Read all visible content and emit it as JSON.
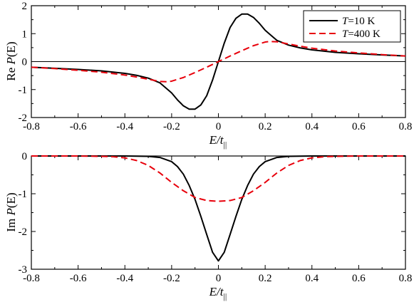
{
  "chart_data": [
    {
      "type": "line",
      "title": "",
      "xlabel_parts": {
        "base": "E/t",
        "sub": "||"
      },
      "ylabel_parts": {
        "prefix": "Re ",
        "func": "P",
        "arg": "(E)"
      },
      "xlim": [
        -0.8,
        0.8
      ],
      "ylim": [
        -2,
        2
      ],
      "xticks": [
        -0.8,
        -0.6,
        -0.4,
        -0.2,
        0,
        0.2,
        0.4,
        0.6,
        0.8
      ],
      "yticks": [
        -2,
        -1,
        0,
        1,
        2
      ],
      "xticklabels": [
        "-0.8",
        "-0.6",
        "-0.4",
        "-0.2",
        "0",
        "0.2",
        "0.4",
        "0.6",
        "0.8"
      ],
      "yticklabels": [
        "-2",
        "-1",
        "0",
        "1",
        "2"
      ],
      "legend_placement": "top-right",
      "series": [
        {
          "name": "T=10 K",
          "label_parts": {
            "var": "T",
            "rest": "=10 K"
          },
          "color": "#000000",
          "dash": "solid",
          "x": [
            -0.8,
            -0.7,
            -0.6,
            -0.5,
            -0.4,
            -0.35,
            -0.3,
            -0.25,
            -0.2,
            -0.175,
            -0.15,
            -0.125,
            -0.1,
            -0.075,
            -0.05,
            -0.025,
            0,
            0.025,
            0.05,
            0.075,
            0.1,
            0.125,
            0.15,
            0.175,
            0.2,
            0.25,
            0.3,
            0.35,
            0.4,
            0.5,
            0.6,
            0.7,
            0.8
          ],
          "y": [
            -0.2,
            -0.24,
            -0.28,
            -0.33,
            -0.42,
            -0.49,
            -0.59,
            -0.76,
            -1.12,
            -1.37,
            -1.58,
            -1.7,
            -1.7,
            -1.55,
            -1.22,
            -0.66,
            0.0,
            0.66,
            1.22,
            1.55,
            1.7,
            1.7,
            1.58,
            1.37,
            1.12,
            0.76,
            0.59,
            0.49,
            0.42,
            0.33,
            0.28,
            0.24,
            0.2
          ]
        },
        {
          "name": "T=400 K",
          "label_parts": {
            "var": "T",
            "rest": "=400 K"
          },
          "color": "#e8000b",
          "dash": "dashed",
          "x": [
            -0.8,
            -0.7,
            -0.6,
            -0.5,
            -0.4,
            -0.35,
            -0.3,
            -0.25,
            -0.22,
            -0.2,
            -0.15,
            -0.1,
            -0.05,
            0,
            0.05,
            0.1,
            0.15,
            0.2,
            0.22,
            0.25,
            0.3,
            0.35,
            0.4,
            0.5,
            0.6,
            0.7,
            0.8
          ],
          "y": [
            -0.2,
            -0.25,
            -0.31,
            -0.38,
            -0.48,
            -0.55,
            -0.63,
            -0.71,
            -0.72,
            -0.7,
            -0.57,
            -0.39,
            -0.2,
            0.0,
            0.2,
            0.39,
            0.57,
            0.7,
            0.72,
            0.71,
            0.63,
            0.55,
            0.48,
            0.38,
            0.31,
            0.25,
            0.2
          ]
        }
      ]
    },
    {
      "type": "line",
      "title": "",
      "xlabel_parts": {
        "base": "E/t",
        "sub": "||"
      },
      "ylabel_parts": {
        "prefix": "Im ",
        "func": "P",
        "arg": "(E)"
      },
      "xlim": [
        -0.8,
        0.8
      ],
      "ylim": [
        -3,
        0
      ],
      "xticks": [
        -0.8,
        -0.6,
        -0.4,
        -0.2,
        0,
        0.2,
        0.4,
        0.6,
        0.8
      ],
      "yticks": [
        -3,
        -2,
        -1,
        0
      ],
      "xticklabels": [
        "-0.8",
        "-0.6",
        "-0.4",
        "-0.2",
        "0",
        "0.2",
        "0.4",
        "0.6",
        "0.8"
      ],
      "yticklabels": [
        "-3",
        "-2",
        "-1",
        "0"
      ],
      "series": [
        {
          "name": "T=10 K",
          "color": "#000000",
          "dash": "solid",
          "x": [
            -0.8,
            -0.4,
            -0.3,
            -0.25,
            -0.2,
            -0.175,
            -0.15,
            -0.125,
            -0.1,
            -0.075,
            -0.05,
            -0.025,
            0,
            0.025,
            0.05,
            0.075,
            0.1,
            0.125,
            0.15,
            0.175,
            0.2,
            0.25,
            0.3,
            0.4,
            0.8
          ],
          "y": [
            0,
            0,
            -0.01,
            -0.04,
            -0.15,
            -0.28,
            -0.48,
            -0.78,
            -1.15,
            -1.6,
            -2.08,
            -2.55,
            -2.78,
            -2.55,
            -2.08,
            -1.6,
            -1.15,
            -0.78,
            -0.48,
            -0.28,
            -0.15,
            -0.04,
            -0.01,
            0,
            0
          ]
        },
        {
          "name": "T=400 K",
          "color": "#e8000b",
          "dash": "dashed",
          "x": [
            -0.8,
            -0.6,
            -0.5,
            -0.45,
            -0.4,
            -0.35,
            -0.3,
            -0.25,
            -0.2,
            -0.15,
            -0.1,
            -0.05,
            0,
            0.05,
            0.1,
            0.15,
            0.2,
            0.25,
            0.3,
            0.35,
            0.4,
            0.45,
            0.5,
            0.6,
            0.8
          ],
          "y": [
            0,
            0,
            -0.01,
            -0.02,
            -0.05,
            -0.12,
            -0.25,
            -0.45,
            -0.7,
            -0.92,
            -1.1,
            -1.18,
            -1.2,
            -1.18,
            -1.1,
            -0.92,
            -0.7,
            -0.45,
            -0.25,
            -0.12,
            -0.05,
            -0.02,
            -0.01,
            0,
            0
          ]
        }
      ]
    }
  ]
}
